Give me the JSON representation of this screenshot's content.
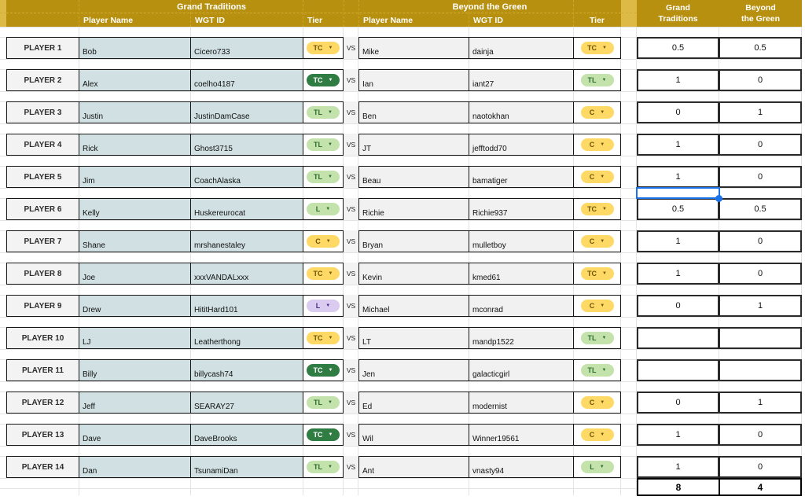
{
  "headers": {
    "left_team": "Grand Traditions",
    "right_team": "Beyond the Green",
    "col_player_name": "Player Name",
    "col_wgt_id": "WGT ID",
    "col_tier": "Tier",
    "score_left_line1": "Grand",
    "score_left_line2": "Traditions",
    "score_right_line1": "Beyond",
    "score_right_line2": "the Green"
  },
  "vs_label": "VS",
  "matchups": [
    {
      "label": "PLAYER 1",
      "left": {
        "name": "Bob",
        "wgt_id": "Cicero733",
        "tier": "TC",
        "tier_color": "yellow"
      },
      "right": {
        "name": "Mike",
        "wgt_id": "dainja",
        "tier": "TC",
        "tier_color": "yellow"
      },
      "scores": {
        "grand_traditions": "0.5",
        "beyond_the_green": "0.5"
      }
    },
    {
      "label": "PLAYER 2",
      "left": {
        "name": "Alex",
        "wgt_id": "coelho4187",
        "tier": "TC",
        "tier_color": "dark-green"
      },
      "right": {
        "name": "Ian",
        "wgt_id": "iant27",
        "tier": "TL",
        "tier_color": "light-green"
      },
      "scores": {
        "grand_traditions": "1",
        "beyond_the_green": "0"
      }
    },
    {
      "label": "PLAYER 3",
      "left": {
        "name": "Justin",
        "wgt_id": "JustinDamCase",
        "tier": "TL",
        "tier_color": "light-green"
      },
      "right": {
        "name": "Ben",
        "wgt_id": "naotokhan",
        "tier": "C",
        "tier_color": "yellow"
      },
      "scores": {
        "grand_traditions": "0",
        "beyond_the_green": "1"
      }
    },
    {
      "label": "PLAYER 4",
      "left": {
        "name": "Rick",
        "wgt_id": "Ghost3715",
        "tier": "TL",
        "tier_color": "light-green"
      },
      "right": {
        "name": "JT",
        "wgt_id": "jefftodd70",
        "tier": "C",
        "tier_color": "yellow"
      },
      "scores": {
        "grand_traditions": "1",
        "beyond_the_green": "0"
      }
    },
    {
      "label": "PLAYER 5",
      "left": {
        "name": "Jim",
        "wgt_id": "CoachAlaska",
        "tier": "TL",
        "tier_color": "light-green"
      },
      "right": {
        "name": "Beau",
        "wgt_id": "bamatiger",
        "tier": "C",
        "tier_color": "yellow"
      },
      "scores": {
        "grand_traditions": "1",
        "beyond_the_green": "0"
      }
    },
    {
      "label": "PLAYER 6",
      "left": {
        "name": "Kelly",
        "wgt_id": "Huskereurocat",
        "tier": "L",
        "tier_color": "light-green"
      },
      "right": {
        "name": "Richie",
        "wgt_id": "Richie937",
        "tier": "TC",
        "tier_color": "yellow"
      },
      "scores": {
        "grand_traditions": "0.5",
        "beyond_the_green": "0.5"
      }
    },
    {
      "label": "PLAYER 7",
      "left": {
        "name": "Shane",
        "wgt_id": "mrshanestaley",
        "tier": "C",
        "tier_color": "yellow"
      },
      "right": {
        "name": "Bryan",
        "wgt_id": "mulletboy",
        "tier": "C",
        "tier_color": "yellow"
      },
      "scores": {
        "grand_traditions": "1",
        "beyond_the_green": "0"
      }
    },
    {
      "label": "PLAYER 8",
      "left": {
        "name": "Joe",
        "wgt_id": "xxxVANDALxxx",
        "tier": "TC",
        "tier_color": "yellow"
      },
      "right": {
        "name": "Kevin",
        "wgt_id": "kmed61",
        "tier": "TC",
        "tier_color": "yellow"
      },
      "scores": {
        "grand_traditions": "1",
        "beyond_the_green": "0"
      }
    },
    {
      "label": "PLAYER 9",
      "left": {
        "name": "Drew",
        "wgt_id": "HititHard101",
        "tier": "L",
        "tier_color": "purple"
      },
      "right": {
        "name": "Michael",
        "wgt_id": "mconrad",
        "tier": "C",
        "tier_color": "yellow"
      },
      "scores": {
        "grand_traditions": "0",
        "beyond_the_green": "1"
      }
    },
    {
      "label": "PLAYER 10",
      "left": {
        "name": "LJ",
        "wgt_id": "Leatherthong",
        "tier": "TC",
        "tier_color": "yellow"
      },
      "right": {
        "name": "LT",
        "wgt_id": "mandp1522",
        "tier": "TL",
        "tier_color": "light-green"
      },
      "scores": {
        "grand_traditions": "",
        "beyond_the_green": ""
      }
    },
    {
      "label": "PLAYER 11",
      "left": {
        "name": "Billy",
        "wgt_id": "billycash74",
        "tier": "TC",
        "tier_color": "dark-green"
      },
      "right": {
        "name": "Jen",
        "wgt_id": "galacticgirl",
        "tier": "TL",
        "tier_color": "light-green"
      },
      "scores": {
        "grand_traditions": "",
        "beyond_the_green": ""
      }
    },
    {
      "label": "PLAYER 12",
      "left": {
        "name": "Jeff",
        "wgt_id": "SEARAY27",
        "tier": "TL",
        "tier_color": "light-green"
      },
      "right": {
        "name": "Ed",
        "wgt_id": "modernist",
        "tier": "C",
        "tier_color": "yellow"
      },
      "scores": {
        "grand_traditions": "0",
        "beyond_the_green": "1"
      }
    },
    {
      "label": "PLAYER 13",
      "left": {
        "name": "Dave",
        "wgt_id": "DaveBrooks",
        "tier": "TC",
        "tier_color": "dark-green"
      },
      "right": {
        "name": "Wil",
        "wgt_id": "Winner19561",
        "tier": "C",
        "tier_color": "yellow"
      },
      "scores": {
        "grand_traditions": "1",
        "beyond_the_green": "0"
      }
    },
    {
      "label": "PLAYER 14",
      "left": {
        "name": "Dan",
        "wgt_id": "TsunamiDan",
        "tier": "TL",
        "tier_color": "light-green"
      },
      "right": {
        "name": "Ant",
        "wgt_id": "vnasty94",
        "tier": "L",
        "tier_color": "light-green"
      },
      "scores": {
        "grand_traditions": "1",
        "beyond_the_green": "0"
      }
    }
  ],
  "totals": {
    "grand_traditions": "8",
    "beyond_the_green": "4"
  },
  "selection": {
    "column": "Grand Traditions score",
    "position": "blank row below PLAYER 5",
    "border_color": "#1a73e8"
  },
  "colors": {
    "header_gold": "#b8900f",
    "accent_gold": "#ddb945",
    "left_team_cell": "#d0e0e3",
    "right_team_cell": "#f1f1f1",
    "label_cell": "#f3f3f3",
    "selection_blue": "#1a73e8",
    "pill_yellow": "#ffd966",
    "pill_dark_green": "#2f7d43",
    "pill_light_green": "#c4e3ac",
    "pill_purple": "#dacbf1"
  },
  "dropdown_arrow": "▼"
}
